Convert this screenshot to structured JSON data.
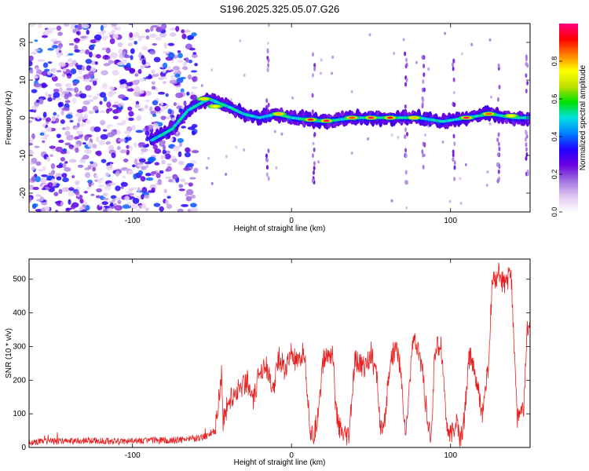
{
  "figure": {
    "title": "S196.2025.325.05.07.G26"
  },
  "chart_data": [
    {
      "type": "heatmap",
      "name": "spectrogram",
      "xlabel": "Height of straight line (km)",
      "ylabel": "Frequency (Hz)",
      "xlim": [
        -165,
        150
      ],
      "ylim": [
        -25,
        25
      ],
      "x_ticks": [
        -100,
        0,
        100
      ],
      "y_ticks": [
        -20,
        -10,
        0,
        10,
        20
      ],
      "colorbar": {
        "label": "Normalized spectral amplitude",
        "range": [
          0.0,
          1.0
        ],
        "ticks": [
          0.0,
          0.2,
          0.4,
          0.6,
          0.8
        ],
        "tick_labels": [
          "0.0",
          "0.2",
          "0.4",
          "0.6",
          "0.8"
        ],
        "stops": [
          "#ffffff",
          "#e0c8f0",
          "#a070e0",
          "#6a00e0",
          "#2000ff",
          "#0080ff",
          "#00e0e0",
          "#00e000",
          "#c0e000",
          "#ffff00",
          "#ff8000",
          "#ff0000",
          "#ff0080"
        ]
      },
      "noise_region": {
        "x_range": [
          -165,
          -60
        ],
        "description": "broadband noise"
      },
      "signal_track": [
        {
          "x": -88,
          "f": -6
        },
        {
          "x": -75,
          "f": -3
        },
        {
          "x": -65,
          "f": 2
        },
        {
          "x": -52,
          "f": 5
        },
        {
          "x": -40,
          "f": 3
        },
        {
          "x": -30,
          "f": 1
        },
        {
          "x": -20,
          "f": 0
        },
        {
          "x": -10,
          "f": 1
        },
        {
          "x": 0,
          "f": 0
        },
        {
          "x": 20,
          "f": -1
        },
        {
          "x": 40,
          "f": 0
        },
        {
          "x": 60,
          "f": 0
        },
        {
          "x": 80,
          "f": 0
        },
        {
          "x": 95,
          "f": -1
        },
        {
          "x": 110,
          "f": 0
        },
        {
          "x": 125,
          "f": 1
        },
        {
          "x": 140,
          "f": 0
        },
        {
          "x": 150,
          "f": 0
        }
      ],
      "hot_spots": [
        {
          "x": 12,
          "f": -0.5,
          "amp": 0.95
        },
        {
          "x": 22,
          "f": -0.8,
          "amp": 1.0
        },
        {
          "x": 38,
          "f": 0,
          "amp": 0.85
        },
        {
          "x": 50,
          "f": 0,
          "amp": 1.0
        },
        {
          "x": 62,
          "f": 0,
          "amp": 0.95
        },
        {
          "x": 77,
          "f": 0,
          "amp": 0.8
        },
        {
          "x": 110,
          "f": 0,
          "amp": 1.0
        },
        {
          "x": 124,
          "f": 1,
          "amp": 0.85
        },
        {
          "x": 138,
          "f": 0.5,
          "amp": 0.75
        },
        {
          "x": -48,
          "f": 3,
          "amp": 0.75
        },
        {
          "x": -55,
          "f": 5,
          "amp": 0.7
        },
        {
          "x": -8,
          "f": 1,
          "amp": 0.8
        }
      ],
      "spikes": [
        -15,
        14,
        72,
        83,
        102,
        130,
        148
      ]
    },
    {
      "type": "line",
      "name": "snr",
      "xlabel": "Height of straight line (km)",
      "ylabel": "SNR (10 * v/v)",
      "xlim": [
        -165,
        150
      ],
      "ylim": [
        0,
        560
      ],
      "x_ticks": [
        -100,
        0,
        100
      ],
      "y_ticks": [
        0,
        100,
        200,
        300,
        400,
        500
      ],
      "series": [
        {
          "name": "SNR",
          "color": "#e82020",
          "x": [
            -165,
            -150,
            -130,
            -110,
            -90,
            -70,
            -55,
            -48,
            -44,
            -43,
            -40,
            -36,
            -32,
            -28,
            -24,
            -20,
            -16,
            -12,
            -8,
            -4,
            0,
            4,
            8,
            12,
            14,
            16,
            20,
            24,
            26,
            28,
            32,
            36,
            40,
            42,
            46,
            50,
            54,
            56,
            58,
            62,
            66,
            68,
            72,
            76,
            80,
            82,
            86,
            88,
            90,
            94,
            98,
            100,
            104,
            106,
            108,
            112,
            116,
            120,
            124,
            126,
            128,
            130,
            134,
            138,
            142,
            146,
            148,
            150
          ],
          "y": [
            15,
            18,
            20,
            18,
            20,
            22,
            30,
            50,
            220,
            80,
            130,
            160,
            180,
            200,
            130,
            230,
            250,
            160,
            270,
            230,
            280,
            240,
            290,
            40,
            30,
            80,
            260,
            280,
            280,
            100,
            30,
            30,
            260,
            250,
            240,
            280,
            200,
            50,
            40,
            260,
            300,
            250,
            30,
            320,
            280,
            240,
            50,
            30,
            290,
            310,
            50,
            30,
            80,
            20,
            60,
            280,
            200,
            100,
            250,
            480,
            500,
            520,
            480,
            520,
            90,
            110,
            340,
            400
          ]
        }
      ]
    }
  ]
}
